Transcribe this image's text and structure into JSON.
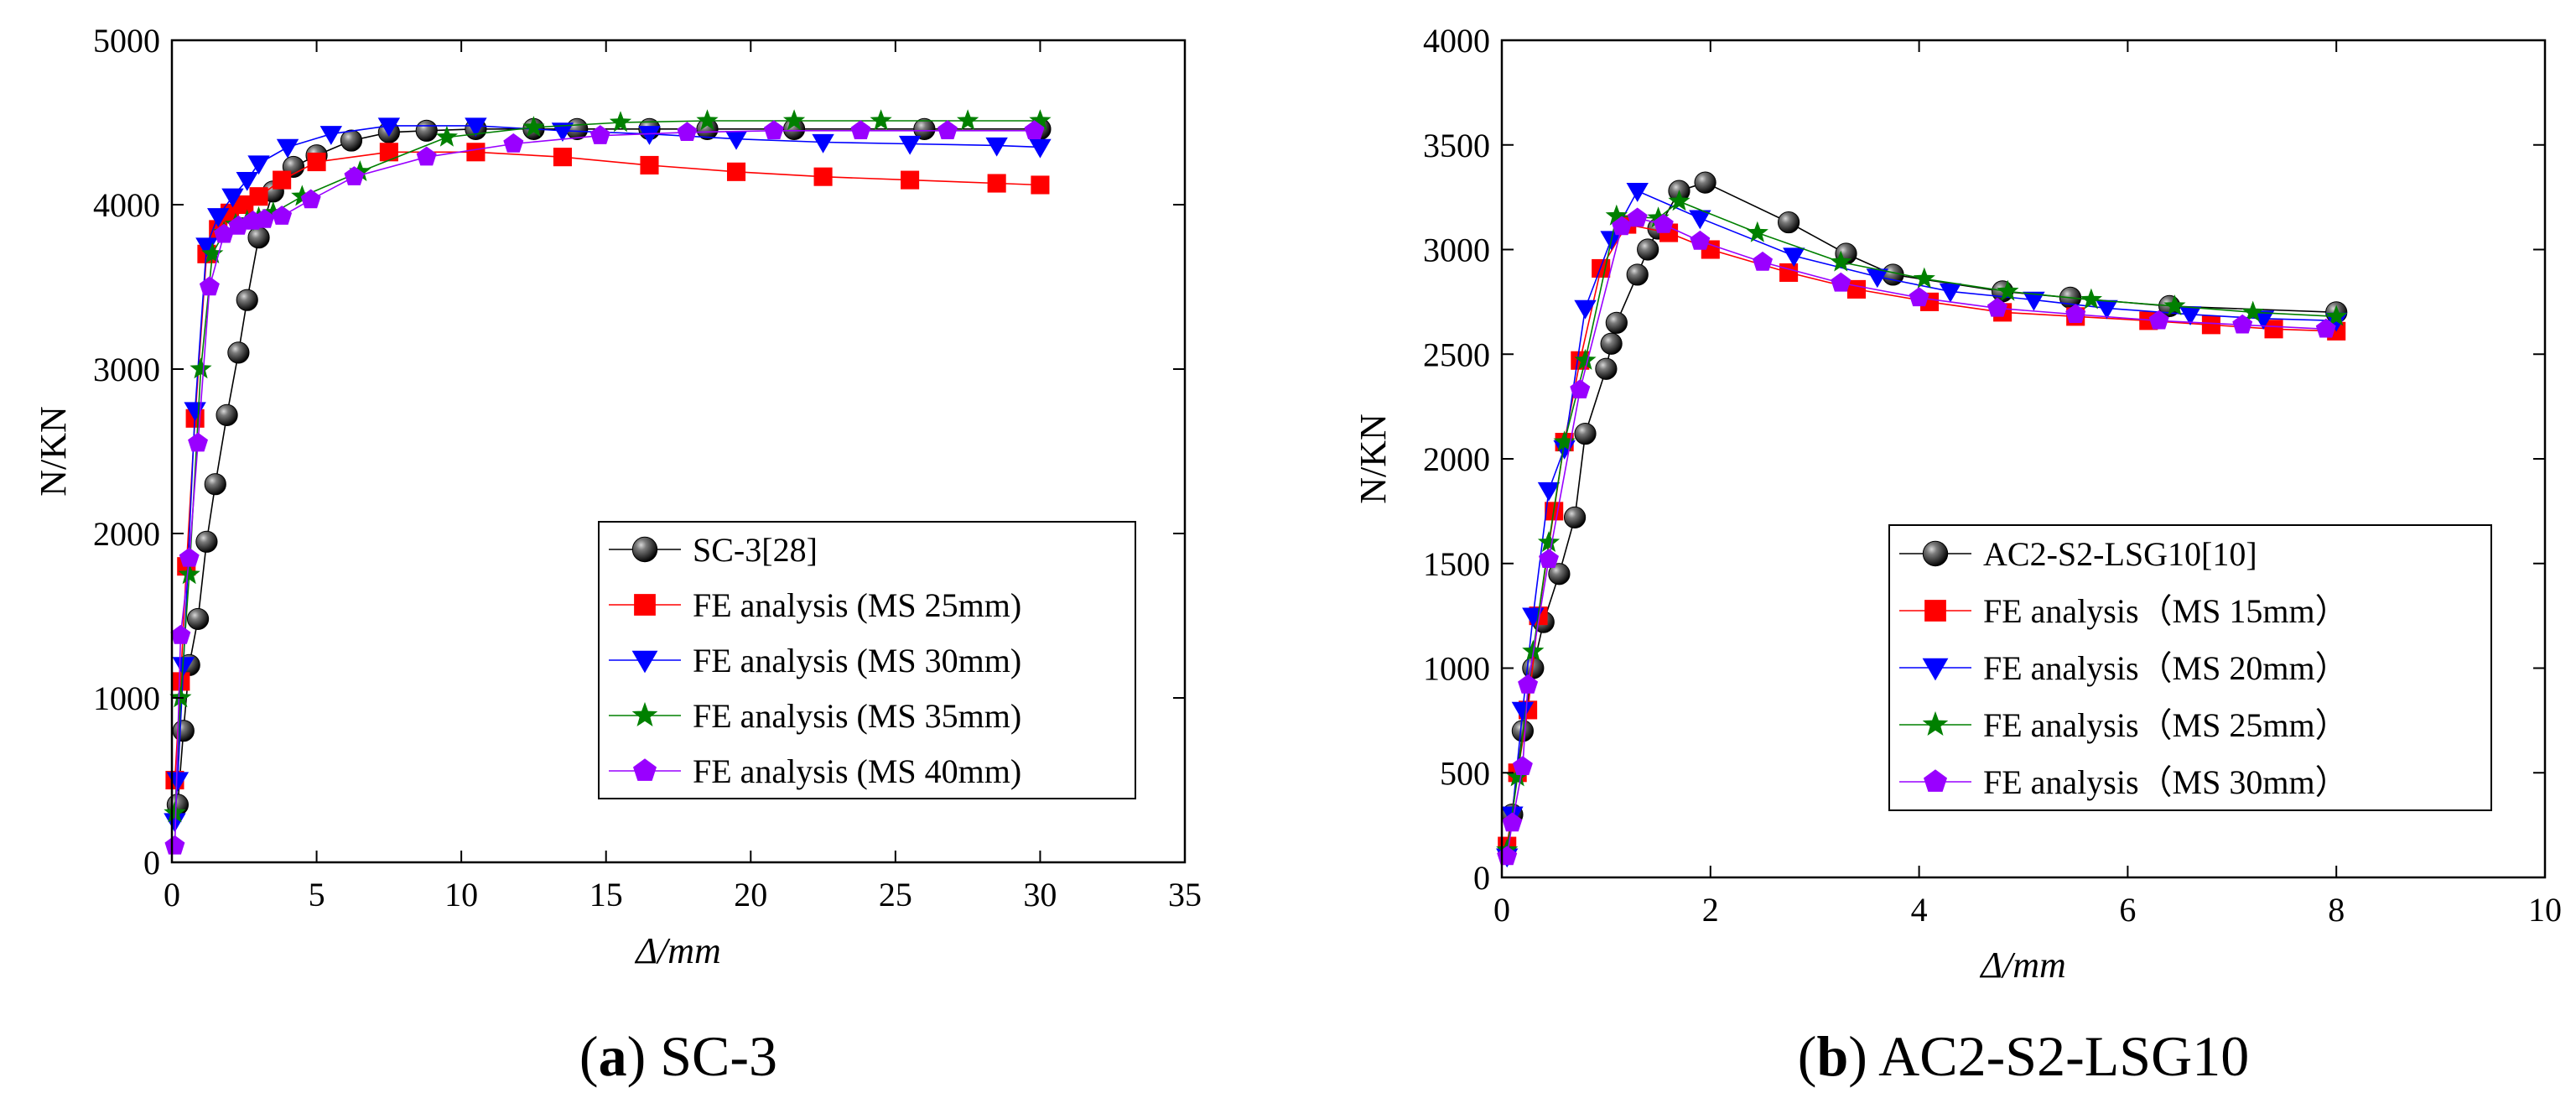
{
  "chart_data": [
    {
      "type": "line",
      "panel_letter": "a",
      "caption": "SC-3",
      "xlabel": "Δ/mm",
      "ylabel": "N/KN",
      "xlim": [
        0,
        35
      ],
      "ylim": [
        0,
        5000
      ],
      "xticks": [
        0,
        5,
        10,
        15,
        20,
        25,
        30,
        35
      ],
      "yticks": [
        0,
        1000,
        2000,
        3000,
        4000,
        5000
      ],
      "legend_position": "bottom-right",
      "series": [
        {
          "name": "SC-3[28]",
          "color": "#000000",
          "marker": "sphere",
          "x": [
            0.2,
            0.4,
            0.6,
            0.9,
            1.2,
            1.5,
            1.9,
            2.3,
            2.6,
            3.0,
            3.5,
            4.2,
            5.0,
            6.2,
            7.5,
            8.8,
            10.5,
            12.5,
            14.0,
            16.5,
            18.5,
            21.5,
            26.0,
            30.0
          ],
          "y": [
            350,
            800,
            1200,
            1480,
            1950,
            2300,
            2720,
            3100,
            3420,
            3800,
            4080,
            4230,
            4300,
            4390,
            4440,
            4450,
            4460,
            4460,
            4460,
            4460,
            4460,
            4460,
            4460,
            4460
          ]
        },
        {
          "name": "FE analysis (MS 25mm)",
          "color": "#ff0000",
          "marker": "square",
          "x": [
            0.1,
            0.3,
            0.5,
            0.8,
            1.2,
            1.6,
            2.0,
            2.5,
            3.0,
            3.8,
            5.0,
            7.5,
            10.5,
            13.5,
            16.5,
            19.5,
            22.5,
            25.5,
            28.5,
            30.0
          ],
          "y": [
            500,
            1100,
            1800,
            2700,
            3700,
            3850,
            3950,
            4000,
            4050,
            4150,
            4260,
            4320,
            4320,
            4290,
            4240,
            4200,
            4170,
            4150,
            4130,
            4120
          ]
        },
        {
          "name": "FE analysis (MS 30mm)",
          "color": "#0000ff",
          "marker": "triangle-down",
          "x": [
            0.1,
            0.2,
            0.4,
            0.8,
            1.2,
            1.6,
            2.1,
            2.6,
            3.0,
            4.0,
            5.5,
            7.5,
            10.5,
            13.5,
            16.5,
            19.5,
            22.5,
            25.5,
            28.5,
            30.0
          ],
          "y": [
            250,
            500,
            1200,
            2750,
            3750,
            3930,
            4050,
            4150,
            4250,
            4350,
            4430,
            4480,
            4480,
            4450,
            4430,
            4400,
            4380,
            4370,
            4360,
            4350
          ]
        },
        {
          "name": "FE analysis (MS 35mm)",
          "color": "#008000",
          "marker": "star",
          "x": [
            0.1,
            0.3,
            0.6,
            1.0,
            1.4,
            1.8,
            2.2,
            2.6,
            3.0,
            3.5,
            4.5,
            6.5,
            9.5,
            12.5,
            15.5,
            18.5,
            21.5,
            24.5,
            27.5,
            30.0
          ],
          "y": [
            300,
            1000,
            1750,
            3000,
            3700,
            3830,
            3880,
            3900,
            3920,
            3950,
            4050,
            4200,
            4410,
            4470,
            4500,
            4510,
            4510,
            4510,
            4510,
            4510
          ]
        },
        {
          "name": "FE analysis (MS 40mm)",
          "color": "#9900ff",
          "marker": "pentagon",
          "x": [
            0.1,
            0.3,
            0.6,
            0.9,
            1.3,
            1.8,
            2.3,
            2.8,
            3.2,
            3.8,
            4.8,
            6.3,
            8.8,
            11.8,
            14.8,
            17.8,
            20.8,
            23.8,
            26.8,
            29.8
          ],
          "y": [
            100,
            1380,
            1850,
            2550,
            3500,
            3820,
            3870,
            3900,
            3910,
            3930,
            4030,
            4170,
            4290,
            4370,
            4420,
            4440,
            4450,
            4450,
            4450,
            4450
          ]
        }
      ]
    },
    {
      "type": "line",
      "panel_letter": "b",
      "caption": "AC2-S2-LSG10",
      "xlabel": "Δ/mm",
      "ylabel": "N/KN",
      "xlim": [
        0,
        10
      ],
      "ylim": [
        0,
        4000
      ],
      "xticks": [
        0,
        2,
        4,
        6,
        8,
        10
      ],
      "yticks": [
        0,
        500,
        1000,
        1500,
        2000,
        2500,
        3000,
        3500,
        4000
      ],
      "legend_position": "bottom-right",
      "series": [
        {
          "name": "AC2-S2-LSG10[10]",
          "color": "#000000",
          "marker": "sphere",
          "x": [
            0.1,
            0.2,
            0.3,
            0.4,
            0.55,
            0.7,
            0.8,
            1.0,
            1.05,
            1.1,
            1.3,
            1.4,
            1.5,
            1.7,
            1.95,
            2.75,
            3.3,
            3.75,
            4.8,
            5.45,
            6.4,
            8.0
          ],
          "y": [
            300,
            700,
            1000,
            1220,
            1450,
            1720,
            2120,
            2430,
            2550,
            2650,
            2880,
            3000,
            3100,
            3280,
            3320,
            3130,
            2980,
            2880,
            2800,
            2770,
            2730,
            2700
          ]
        },
        {
          "name": "FE analysis（MS 15mm）",
          "color": "#ff0000",
          "marker": "square",
          "x": [
            0.05,
            0.15,
            0.25,
            0.35,
            0.5,
            0.6,
            0.75,
            0.95,
            1.2,
            1.6,
            2.0,
            2.75,
            3.4,
            4.1,
            4.8,
            5.5,
            6.2,
            6.8,
            7.4,
            8.0
          ],
          "y": [
            150,
            500,
            800,
            1250,
            1750,
            2080,
            2470,
            2910,
            3120,
            3080,
            3000,
            2890,
            2810,
            2750,
            2700,
            2680,
            2660,
            2640,
            2620,
            2610
          ]
        },
        {
          "name": "FE analysis（MS 20mm）",
          "color": "#0000ff",
          "marker": "triangle-down",
          "x": [
            0.05,
            0.1,
            0.2,
            0.3,
            0.45,
            0.6,
            0.8,
            1.05,
            1.3,
            1.9,
            2.8,
            3.6,
            4.3,
            5.1,
            5.8,
            6.6,
            7.3,
            8.0
          ],
          "y": [
            100,
            300,
            800,
            1250,
            1850,
            2050,
            2720,
            3050,
            3280,
            3150,
            2970,
            2870,
            2800,
            2760,
            2720,
            2690,
            2670,
            2660
          ]
        },
        {
          "name": "FE analysis（MS 25mm）",
          "color": "#008000",
          "marker": "star",
          "x": [
            0.05,
            0.15,
            0.3,
            0.45,
            0.6,
            0.8,
            1.1,
            1.5,
            1.7,
            2.45,
            3.25,
            4.05,
            4.85,
            5.65,
            6.45,
            7.2,
            8.0
          ],
          "y": [
            130,
            480,
            1080,
            1600,
            2080,
            2470,
            3160,
            3150,
            3230,
            3080,
            2940,
            2860,
            2800,
            2760,
            2730,
            2700,
            2680
          ]
        },
        {
          "name": "FE analysis（MS 30mm）",
          "color": "#9900ff",
          "marker": "pentagon",
          "x": [
            0.05,
            0.1,
            0.2,
            0.25,
            0.45,
            0.75,
            1.15,
            1.3,
            1.55,
            1.9,
            2.5,
            3.25,
            4.0,
            4.75,
            5.5,
            6.3,
            7.1,
            7.9
          ],
          "y": [
            100,
            260,
            530,
            920,
            1520,
            2330,
            3110,
            3150,
            3120,
            3040,
            2940,
            2840,
            2770,
            2720,
            2690,
            2660,
            2640,
            2620
          ]
        }
      ]
    }
  ]
}
